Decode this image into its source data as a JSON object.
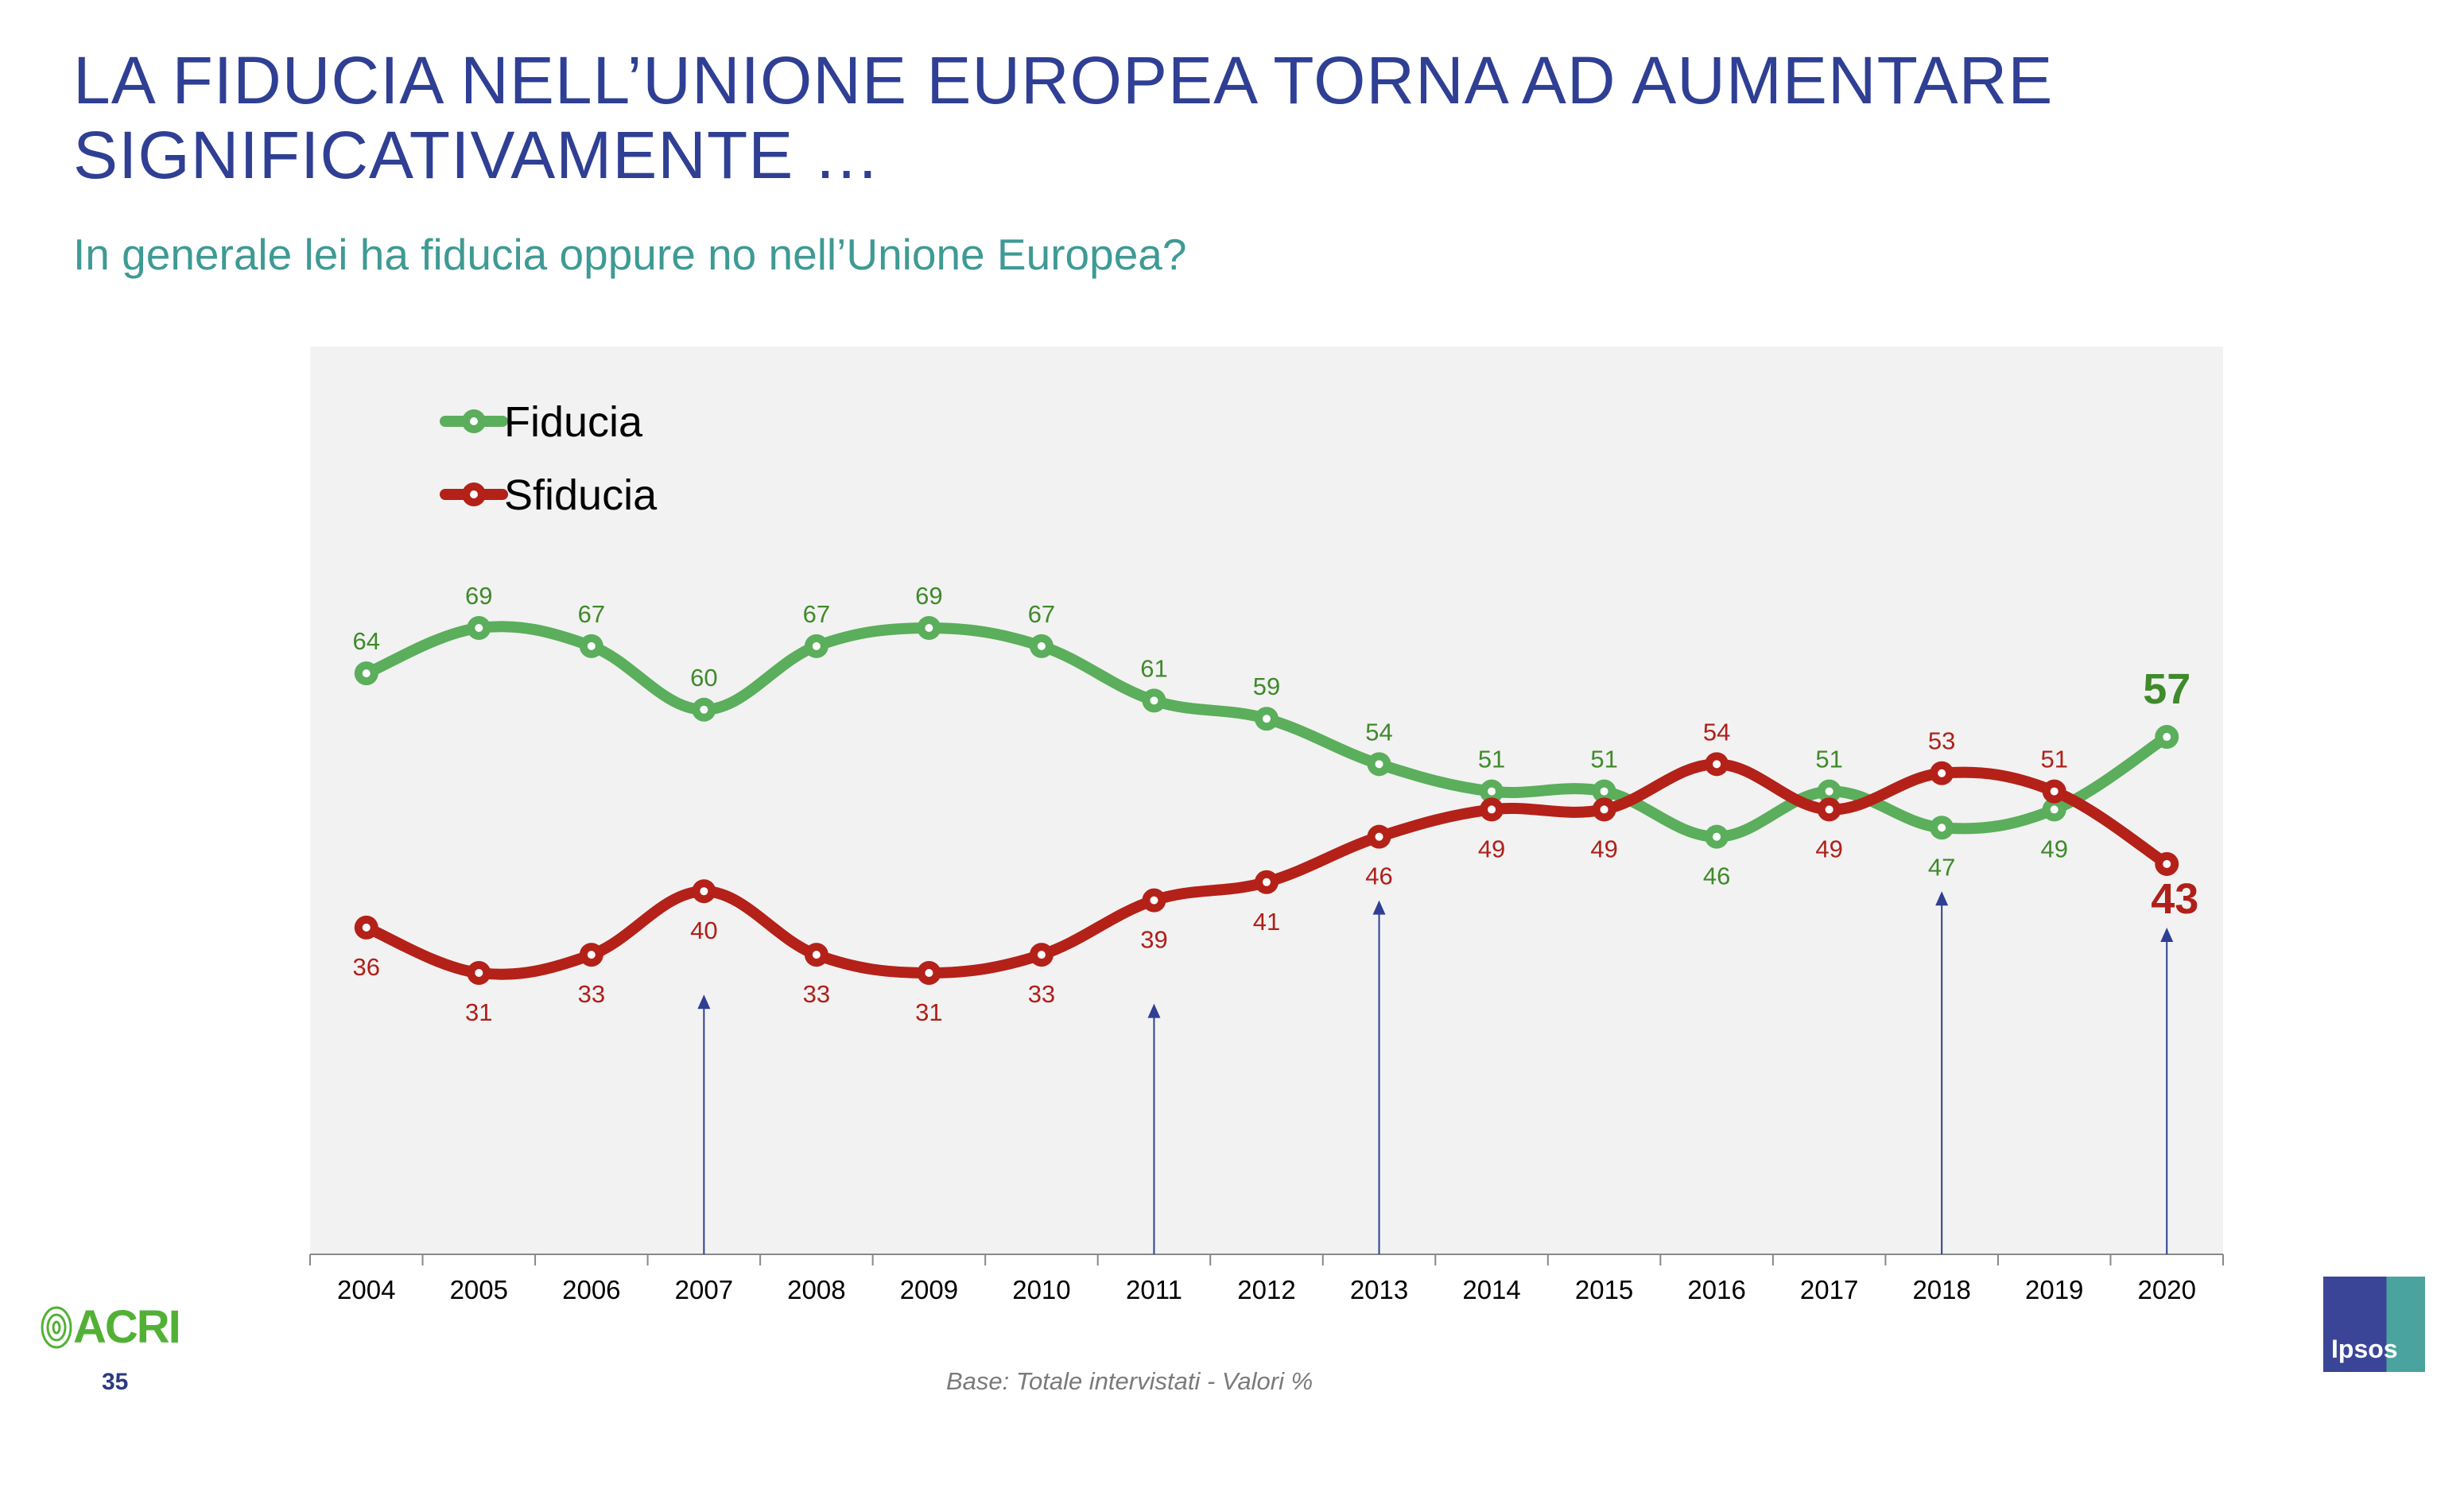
{
  "title_lines": [
    "LA FIDUCIA NELL’UNIONE EUROPEA TORNA AD AUMENTARE",
    "SIGNIFICATIVAMENTE …"
  ],
  "subtitle": "In generale lei ha fiducia oppure no nell’Unione Europea?",
  "footer": {
    "page_number": "35",
    "base_note": "Base: Totale intervistati  - Valori %",
    "left_logo": "ACRI",
    "right_logo": "Ipsos"
  },
  "colors": {
    "title": "#2F3F94",
    "subtitle": "#3E9A94",
    "plot_background": "#F2F2F2",
    "fiducia_line": "#5BAE5B",
    "fiducia_label": "#3F8A2B",
    "sfiducia_line": "#B42118",
    "sfiducia_label": "#B0201A",
    "arrow": "#2F3F94"
  },
  "chart_data": {
    "type": "line",
    "smooth": true,
    "categories": [
      "2004",
      "2005",
      "2006",
      "2007",
      "2008",
      "2009",
      "2010",
      "2011",
      "2012",
      "2013",
      "2014",
      "2015",
      "2016",
      "2017",
      "2018",
      "2019",
      "2020"
    ],
    "series": [
      {
        "name": "Fiducia",
        "values": [
          64,
          69,
          67,
          60,
          67,
          69,
          67,
          61,
          59,
          54,
          51,
          51,
          46,
          51,
          47,
          49,
          57
        ]
      },
      {
        "name": "Sfiducia",
        "values": [
          36,
          31,
          33,
          40,
          33,
          31,
          33,
          39,
          41,
          46,
          49,
          49,
          54,
          49,
          53,
          51,
          43
        ]
      }
    ],
    "ylim": [
      0,
      100
    ],
    "legend": "top-left",
    "grid": false,
    "highlight_last_value": true,
    "arrow_markers": [
      "2007",
      "2011",
      "2013",
      "2018",
      "2020"
    ]
  }
}
